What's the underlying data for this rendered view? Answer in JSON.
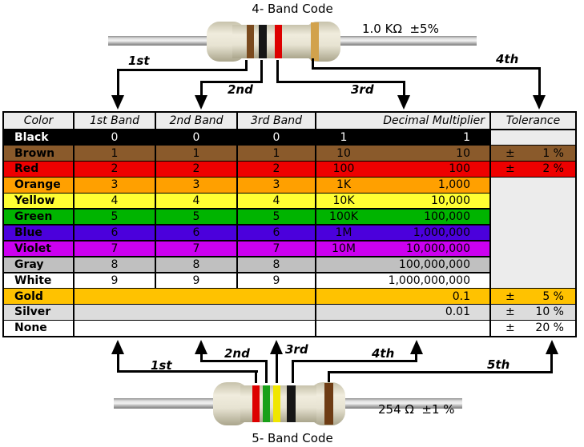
{
  "top_resistor": {
    "title": "4- Band Code",
    "value": "1.0 KΩ  ±5%",
    "bands": [
      "brown",
      "black",
      "red",
      "gold"
    ],
    "band_colors": [
      "#7a4a1e",
      "#161616",
      "#dd0000",
      "#d2a24c"
    ],
    "arrow_labels": [
      "1st",
      "2nd",
      "3rd",
      "4th"
    ]
  },
  "bottom_resistor": {
    "title": "5- Band Code",
    "value": "254 Ω  ±1 %",
    "bands": [
      "red",
      "green",
      "yellow",
      "black",
      "brown"
    ],
    "band_colors": [
      "#dd0000",
      "#18a018",
      "#f0e600",
      "#161616",
      "#6e3c14"
    ],
    "arrow_labels": [
      "1st",
      "2nd",
      "3rd",
      "4th",
      "5th"
    ]
  },
  "table": {
    "headers": [
      "Color",
      "1st Band",
      "2nd Band",
      "3rd Band",
      "Decimal Multiplier",
      "Tolerance"
    ],
    "tolerance_sign": "±",
    "empty_cell_color": "#ececec",
    "rows": [
      {
        "name": "Black",
        "bg": "#000000",
        "fg": "#ffffff",
        "b1": "0",
        "b2": "0",
        "b3": "0",
        "mult_short": "1",
        "mult_full": "1",
        "tol": "",
        "merged_bands": false
      },
      {
        "name": "Brown",
        "bg": "#8a5a2b",
        "fg": "#000000",
        "b1": "1",
        "b2": "1",
        "b3": "1",
        "mult_short": "10",
        "mult_full": "10",
        "tol": "1 %",
        "merged_bands": false
      },
      {
        "name": "Red",
        "bg": "#ee0000",
        "fg": "#000000",
        "b1": "2",
        "b2": "2",
        "b3": "2",
        "mult_short": "100",
        "mult_full": "100",
        "tol": "2 %",
        "merged_bands": false
      },
      {
        "name": "Orange",
        "bg": "#ffa000",
        "fg": "#000000",
        "b1": "3",
        "b2": "3",
        "b3": "3",
        "mult_short": "1K",
        "mult_full": "1,000",
        "tol": "",
        "merged_bands": false
      },
      {
        "name": "Yellow",
        "bg": "#ffff33",
        "fg": "#000000",
        "b1": "4",
        "b2": "4",
        "b3": "4",
        "mult_short": "10K",
        "mult_full": "10,000",
        "tol": "",
        "merged_bands": false
      },
      {
        "name": "Green",
        "bg": "#00b400",
        "fg": "#000000",
        "b1": "5",
        "b2": "5",
        "b3": "5",
        "mult_short": "100K",
        "mult_full": "100,000",
        "tol": "",
        "merged_bands": false
      },
      {
        "name": "Blue",
        "bg": "#4b00dc",
        "fg": "#000000",
        "b1": "6",
        "b2": "6",
        "b3": "6",
        "mult_short": "1M",
        "mult_full": "1,000,000",
        "tol": "",
        "merged_bands": false
      },
      {
        "name": "Violet",
        "bg": "#cc00f0",
        "fg": "#000000",
        "b1": "7",
        "b2": "7",
        "b3": "7",
        "mult_short": "10M",
        "mult_full": "10,000,000",
        "tol": "",
        "merged_bands": false
      },
      {
        "name": "Gray",
        "bg": "#c0c0c0",
        "fg": "#000000",
        "b1": "8",
        "b2": "8",
        "b3": "8",
        "mult_short": "",
        "mult_full": "100,000,000",
        "tol": "",
        "merged_bands": false
      },
      {
        "name": "White",
        "bg": "#ffffff",
        "fg": "#000000",
        "b1": "9",
        "b2": "9",
        "b3": "9",
        "mult_short": "",
        "mult_full": "1,000,000,000",
        "tol": "",
        "merged_bands": false
      },
      {
        "name": "Gold",
        "bg": "#ffc200",
        "fg": "#000000",
        "b1": "",
        "b2": "",
        "b3": "",
        "mult_short": "",
        "mult_full": "0.1",
        "tol": "5 %",
        "merged_bands": true
      },
      {
        "name": "Silver",
        "bg": "#dcdcdc",
        "fg": "#000000",
        "b1": "",
        "b2": "",
        "b3": "",
        "mult_short": "",
        "mult_full": "0.01",
        "tol": "10 %",
        "merged_bands": true
      },
      {
        "name": "None",
        "bg": "#ffffff",
        "fg": "#000000",
        "b1": "",
        "b2": "",
        "b3": "",
        "mult_short": "",
        "mult_full": "",
        "tol": "20 %",
        "merged_bands": true
      }
    ]
  }
}
